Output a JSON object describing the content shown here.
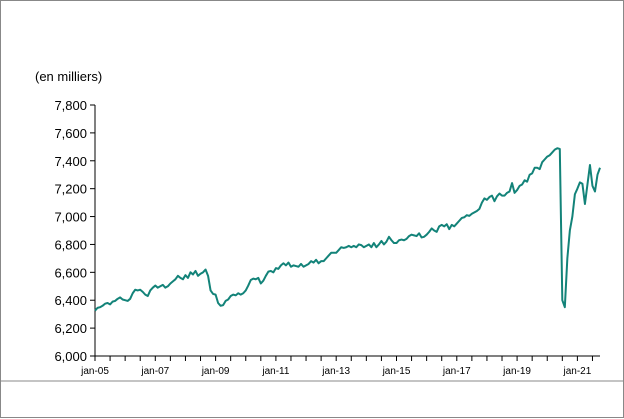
{
  "chart_data": {
    "type": "line",
    "title": "",
    "xlabel": "",
    "ylabel": "(en milliers)",
    "ylim": [
      6000,
      7800
    ],
    "yticks": [
      6000,
      6200,
      6400,
      6600,
      6800,
      7000,
      7200,
      7400,
      7600,
      7800
    ],
    "ytick_labels": [
      "6,000",
      "6,200",
      "6,400",
      "6,600",
      "6,800",
      "7,000",
      "7,200",
      "7,400",
      "7,600",
      "7,800"
    ],
    "xtick_labels": [
      "jan-05",
      "jan-07",
      "jan-09",
      "jan-11",
      "jan-13",
      "jan-15",
      "jan-17",
      "jan-19",
      "jan-21"
    ],
    "xtick_dates": [
      "2005-01",
      "2007-01",
      "2009-01",
      "2011-01",
      "2013-01",
      "2015-01",
      "2017-01",
      "2019-01",
      "2021-01"
    ],
    "grid": false,
    "legend": "none",
    "line_color": "#138379",
    "series": [
      {
        "x": [
          "2005-01",
          "2005-02",
          "2005-03",
          "2005-04",
          "2005-05",
          "2005-06",
          "2005-07",
          "2005-08",
          "2005-09",
          "2005-10",
          "2005-11",
          "2005-12",
          "2006-01",
          "2006-02",
          "2006-03",
          "2006-04",
          "2006-05",
          "2006-06",
          "2006-07",
          "2006-08",
          "2006-09",
          "2006-10",
          "2006-11",
          "2006-12",
          "2007-01",
          "2007-02",
          "2007-03",
          "2007-04",
          "2007-05",
          "2007-06",
          "2007-07",
          "2007-08",
          "2007-09",
          "2007-10",
          "2007-11",
          "2007-12",
          "2008-01",
          "2008-02",
          "2008-03",
          "2008-04",
          "2008-05",
          "2008-06",
          "2008-07",
          "2008-08",
          "2008-09",
          "2008-10",
          "2008-11",
          "2008-12",
          "2009-01",
          "2009-02",
          "2009-03",
          "2009-04",
          "2009-05",
          "2009-06",
          "2009-07",
          "2009-08",
          "2009-09",
          "2009-10",
          "2009-11",
          "2009-12",
          "2010-01",
          "2010-02",
          "2010-03",
          "2010-04",
          "2010-05",
          "2010-06",
          "2010-07",
          "2010-08",
          "2010-09",
          "2010-10",
          "2010-11",
          "2010-12",
          "2011-01",
          "2011-02",
          "2011-03",
          "2011-04",
          "2011-05",
          "2011-06",
          "2011-07",
          "2011-08",
          "2011-09",
          "2011-10",
          "2011-11",
          "2011-12",
          "2012-01",
          "2012-02",
          "2012-03",
          "2012-04",
          "2012-05",
          "2012-06",
          "2012-07",
          "2012-08",
          "2012-09",
          "2012-10",
          "2012-11",
          "2012-12",
          "2013-01",
          "2013-02",
          "2013-03",
          "2013-04",
          "2013-05",
          "2013-06",
          "2013-07",
          "2013-08",
          "2013-09",
          "2013-10",
          "2013-11",
          "2013-12",
          "2014-01",
          "2014-02",
          "2014-03",
          "2014-04",
          "2014-05",
          "2014-06",
          "2014-07",
          "2014-08",
          "2014-09",
          "2014-10",
          "2014-11",
          "2014-12",
          "2015-01",
          "2015-02",
          "2015-03",
          "2015-04",
          "2015-05",
          "2015-06",
          "2015-07",
          "2015-08",
          "2015-09",
          "2015-10",
          "2015-11",
          "2015-12",
          "2016-01",
          "2016-02",
          "2016-03",
          "2016-04",
          "2016-05",
          "2016-06",
          "2016-07",
          "2016-08",
          "2016-09",
          "2016-10",
          "2016-11",
          "2016-12",
          "2017-01",
          "2017-02",
          "2017-03",
          "2017-04",
          "2017-05",
          "2017-06",
          "2017-07",
          "2017-08",
          "2017-09",
          "2017-10",
          "2017-11",
          "2017-12",
          "2018-01",
          "2018-02",
          "2018-03",
          "2018-04",
          "2018-05",
          "2018-06",
          "2018-07",
          "2018-08",
          "2018-09",
          "2018-10",
          "2018-11",
          "2018-12",
          "2019-01",
          "2019-02",
          "2019-03",
          "2019-04",
          "2019-05",
          "2019-06",
          "2019-07",
          "2019-08",
          "2019-09",
          "2019-10",
          "2019-11",
          "2019-12",
          "2020-01",
          "2020-02",
          "2020-03",
          "2020-04",
          "2020-05",
          "2020-06",
          "2020-07",
          "2020-08",
          "2020-09",
          "2020-10",
          "2020-11",
          "2020-12",
          "2021-01",
          "2021-02",
          "2021-03",
          "2021-04",
          "2021-05",
          "2021-06",
          "2021-07",
          "2021-08",
          "2021-09",
          "2021-10"
        ],
        "values": [
          6325,
          6345,
          6350,
          6360,
          6375,
          6380,
          6370,
          6390,
          6395,
          6410,
          6420,
          6405,
          6400,
          6395,
          6410,
          6450,
          6475,
          6470,
          6475,
          6460,
          6440,
          6430,
          6470,
          6490,
          6505,
          6490,
          6500,
          6510,
          6490,
          6500,
          6520,
          6535,
          6550,
          6575,
          6560,
          6550,
          6580,
          6560,
          6600,
          6585,
          6610,
          6575,
          6590,
          6600,
          6620,
          6575,
          6470,
          6445,
          6440,
          6380,
          6360,
          6365,
          6395,
          6405,
          6430,
          6440,
          6435,
          6450,
          6440,
          6450,
          6470,
          6505,
          6545,
          6555,
          6550,
          6560,
          6520,
          6540,
          6575,
          6605,
          6610,
          6600,
          6630,
          6625,
          6650,
          6665,
          6650,
          6670,
          6640,
          6650,
          6645,
          6640,
          6660,
          6640,
          6650,
          6660,
          6680,
          6670,
          6690,
          6665,
          6680,
          6680,
          6700,
          6720,
          6740,
          6740,
          6740,
          6760,
          6780,
          6775,
          6780,
          6790,
          6780,
          6790,
          6780,
          6800,
          6795,
          6780,
          6790,
          6800,
          6780,
          6810,
          6780,
          6800,
          6825,
          6800,
          6820,
          6855,
          6830,
          6810,
          6810,
          6830,
          6835,
          6830,
          6840,
          6860,
          6870,
          6865,
          6860,
          6880,
          6850,
          6855,
          6870,
          6890,
          6915,
          6900,
          6890,
          6930,
          6940,
          6930,
          6945,
          6910,
          6940,
          6930,
          6950,
          6970,
          6990,
          6995,
          7010,
          7005,
          7020,
          7030,
          7040,
          7055,
          7100,
          7130,
          7120,
          7140,
          7150,
          7110,
          7145,
          7165,
          7150,
          7150,
          7170,
          7180,
          7240,
          7170,
          7190,
          7220,
          7230,
          7260,
          7250,
          7300,
          7310,
          7350,
          7350,
          7340,
          7390,
          7410,
          7430,
          7440,
          7460,
          7480,
          7490,
          7485,
          6400,
          6350,
          6700,
          6900,
          7000,
          7160,
          7200,
          7245,
          7235,
          7090,
          7230,
          7370,
          7220,
          7180,
          7300,
          7350
        ]
      }
    ]
  }
}
